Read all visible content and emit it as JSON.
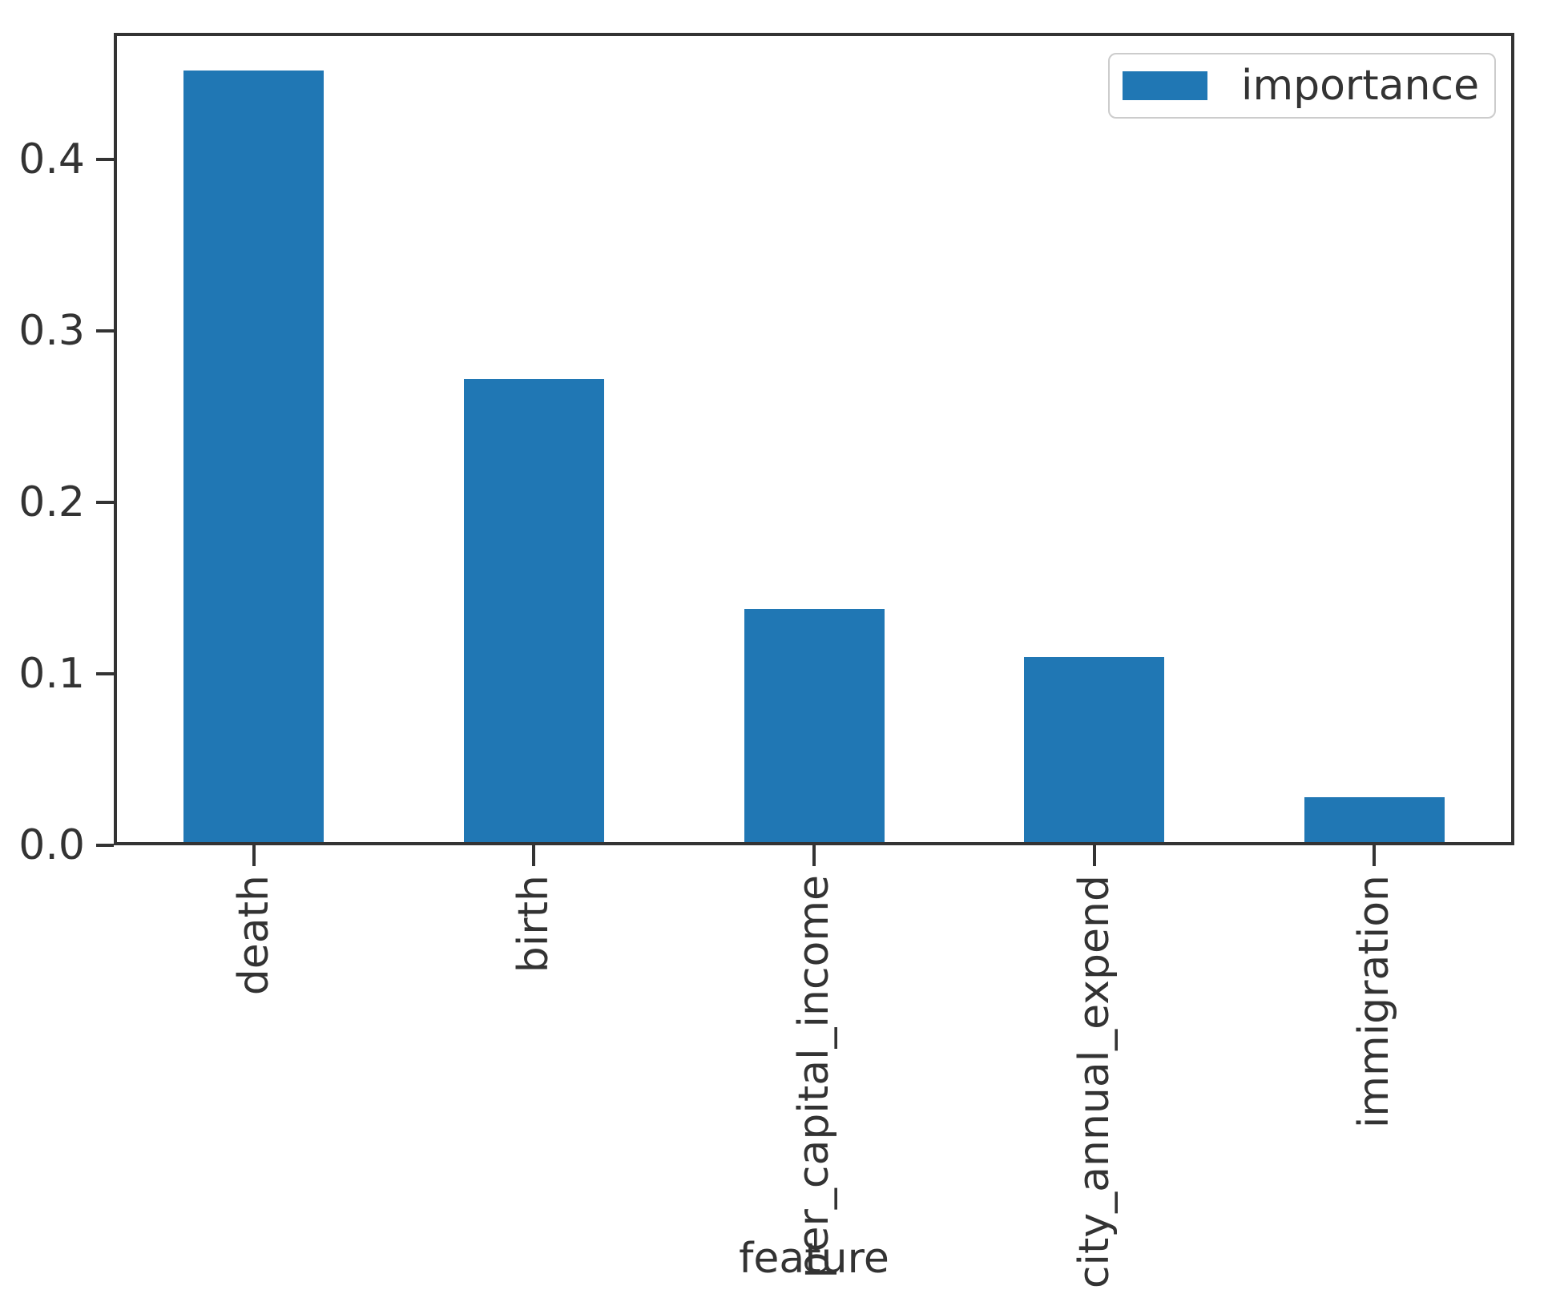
{
  "chart_data": {
    "type": "bar",
    "title": "",
    "xlabel": "feature",
    "ylabel": "",
    "categories": [
      "death",
      "birth",
      "per_capital_income",
      "city_annual_expend",
      "immigration"
    ],
    "series": [
      {
        "name": "importance",
        "values": [
          0.452,
          0.272,
          0.138,
          0.11,
          0.028
        ]
      }
    ],
    "ylim": [
      0,
      0.474
    ],
    "yticks": [
      {
        "value": 0.0,
        "label": "0.0"
      },
      {
        "value": 0.1,
        "label": "0.1"
      },
      {
        "value": 0.2,
        "label": "0.2"
      },
      {
        "value": 0.3,
        "label": "0.3"
      },
      {
        "value": 0.4,
        "label": "0.4"
      }
    ],
    "grid": false,
    "legend": {
      "label": "importance",
      "position": "upper right"
    },
    "colors": {
      "bar": "#2077b4",
      "axis": "#333333",
      "text": "#333333",
      "legend_border": "#cccccc"
    }
  }
}
